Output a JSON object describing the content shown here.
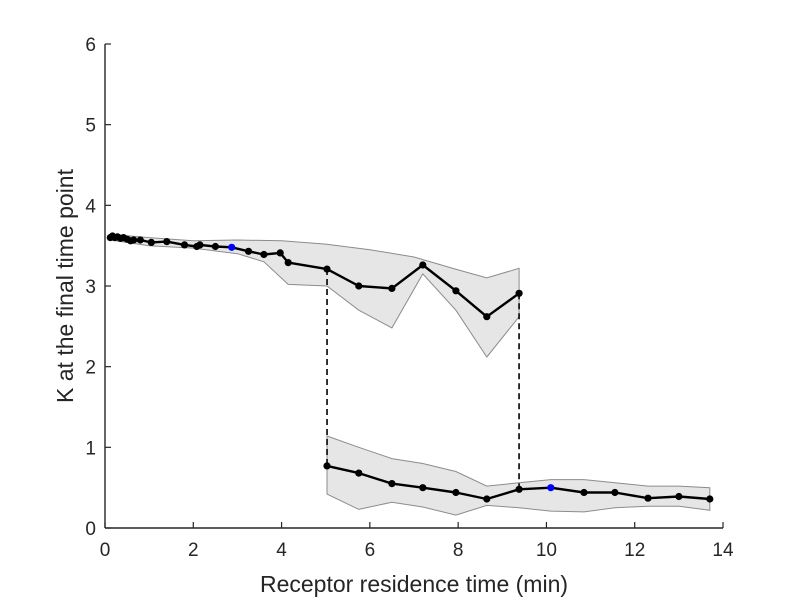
{
  "chart_data": {
    "type": "line",
    "title": "",
    "xlabel": "Receptor residence time (min)",
    "ylabel": "K at the final time point",
    "xlim": [
      0,
      14
    ],
    "ylim": [
      0,
      6
    ],
    "xticks": [
      0,
      2,
      4,
      6,
      8,
      10,
      12,
      14
    ],
    "yticks": [
      0,
      1,
      2,
      3,
      4,
      5,
      6
    ],
    "grid": false,
    "legend": "none",
    "colors": {
      "line": "#000000",
      "marker": "#000000",
      "highlight_marker": "#0000ff",
      "band_fill": "#e6e6e6",
      "band_edge": "#8c8c8c",
      "connector": "#000000"
    },
    "series": [
      {
        "points": [
          [
            0.12,
            3.6
          ],
          [
            0.17,
            3.62
          ],
          [
            0.22,
            3.6
          ],
          [
            0.28,
            3.61
          ],
          [
            0.35,
            3.59
          ],
          [
            0.42,
            3.6
          ],
          [
            0.5,
            3.58
          ],
          [
            0.58,
            3.56
          ],
          [
            0.65,
            3.57
          ],
          [
            0.8,
            3.57
          ],
          [
            1.05,
            3.54
          ],
          [
            1.4,
            3.55
          ],
          [
            1.8,
            3.51
          ],
          [
            2.08,
            3.49
          ],
          [
            2.15,
            3.51
          ],
          [
            2.5,
            3.49
          ],
          [
            2.87,
            3.48
          ],
          [
            3.25,
            3.43
          ],
          [
            3.6,
            3.39
          ],
          [
            3.97,
            3.41
          ],
          [
            4.15,
            3.29
          ],
          [
            5.03,
            3.21
          ],
          [
            5.75,
            3.0
          ],
          [
            6.5,
            2.97
          ],
          [
            7.2,
            3.26
          ],
          [
            7.95,
            2.94
          ],
          [
            8.65,
            2.62
          ],
          [
            9.38,
            2.91
          ]
        ],
        "band_upper": [
          [
            0.12,
            3.64
          ],
          [
            1.0,
            3.6
          ],
          [
            2.0,
            3.56
          ],
          [
            3.0,
            3.57
          ],
          [
            4.0,
            3.56
          ],
          [
            5.0,
            3.52
          ],
          [
            6.0,
            3.45
          ],
          [
            7.0,
            3.36
          ],
          [
            8.0,
            3.2
          ],
          [
            8.65,
            3.1
          ],
          [
            9.38,
            3.22
          ]
        ],
        "band_lower": [
          [
            9.38,
            2.62
          ],
          [
            8.65,
            2.12
          ],
          [
            7.95,
            2.7
          ],
          [
            7.2,
            3.15
          ],
          [
            6.5,
            2.48
          ],
          [
            5.75,
            2.7
          ],
          [
            5.03,
            3.0
          ],
          [
            4.15,
            3.02
          ],
          [
            3.6,
            3.3
          ],
          [
            3.0,
            3.4
          ],
          [
            2.0,
            3.47
          ],
          [
            1.0,
            3.5
          ],
          [
            0.12,
            3.57
          ]
        ],
        "highlight_x": 2.87
      },
      {
        "points": [
          [
            5.03,
            0.77
          ],
          [
            5.75,
            0.68
          ],
          [
            6.5,
            0.55
          ],
          [
            7.2,
            0.5
          ],
          [
            7.95,
            0.44
          ],
          [
            8.65,
            0.36
          ],
          [
            9.38,
            0.48
          ],
          [
            10.1,
            0.5
          ],
          [
            10.85,
            0.44
          ],
          [
            11.55,
            0.44
          ],
          [
            12.3,
            0.37
          ],
          [
            13.0,
            0.39
          ],
          [
            13.7,
            0.36
          ]
        ],
        "band_upper": [
          [
            5.03,
            1.14
          ],
          [
            5.75,
            1.0
          ],
          [
            6.5,
            0.86
          ],
          [
            7.2,
            0.8
          ],
          [
            7.95,
            0.7
          ],
          [
            8.65,
            0.52
          ],
          [
            9.38,
            0.56
          ],
          [
            10.1,
            0.6
          ],
          [
            10.85,
            0.6
          ],
          [
            11.55,
            0.56
          ],
          [
            12.3,
            0.52
          ],
          [
            13.0,
            0.52
          ],
          [
            13.7,
            0.5
          ]
        ],
        "band_lower": [
          [
            13.7,
            0.22
          ],
          [
            13.0,
            0.27
          ],
          [
            12.3,
            0.27
          ],
          [
            11.55,
            0.25
          ],
          [
            10.85,
            0.2
          ],
          [
            10.1,
            0.21
          ],
          [
            9.38,
            0.25
          ],
          [
            8.65,
            0.28
          ],
          [
            7.95,
            0.16
          ],
          [
            7.2,
            0.26
          ],
          [
            6.5,
            0.32
          ],
          [
            5.75,
            0.23
          ],
          [
            5.03,
            0.42
          ]
        ],
        "highlight_x": 10.1
      }
    ],
    "connectors": [
      {
        "x": 5.03,
        "y_top": 3.21,
        "y_bottom": 0.77
      },
      {
        "x": 9.38,
        "y_top": 2.91,
        "y_bottom": 0.48
      }
    ]
  }
}
